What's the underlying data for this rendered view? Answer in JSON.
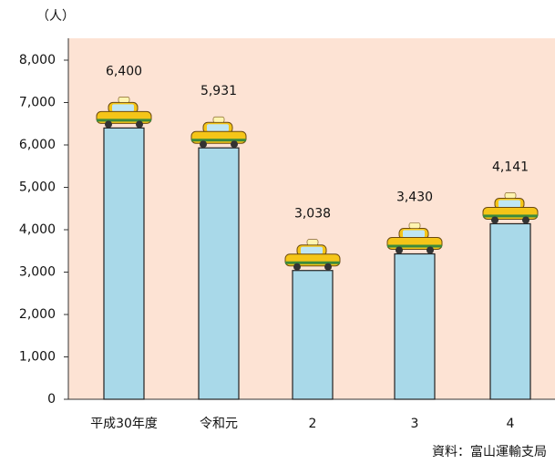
{
  "chart_data": {
    "type": "bar",
    "unit_label": "（人）",
    "source": "資料：富山運輸支局",
    "categories": [
      "平成30年度",
      "令和元",
      "2",
      "3",
      "4"
    ],
    "values": [
      6400,
      5931,
      3038,
      3430,
      4141
    ],
    "value_labels": [
      "6,400",
      "5,931",
      "3,038",
      "3,430",
      "4,141"
    ],
    "color": "#a9d9e9",
    "ylim": [
      0,
      8000
    ],
    "yticks": [
      0,
      {
        "value": 1000,
        "label": "1,000"
      },
      {
        "value": 2000,
        "label": "2,000"
      },
      {
        "value": 3000,
        "label": "3,000"
      },
      {
        "value": 4000,
        "label": "4,000"
      },
      {
        "value": 5000,
        "label": "5,000"
      },
      {
        "value": 6000,
        "label": "6,000"
      },
      {
        "value": 7000,
        "label": "7,000"
      },
      {
        "value": 8000,
        "label": "8,000"
      }
    ]
  }
}
